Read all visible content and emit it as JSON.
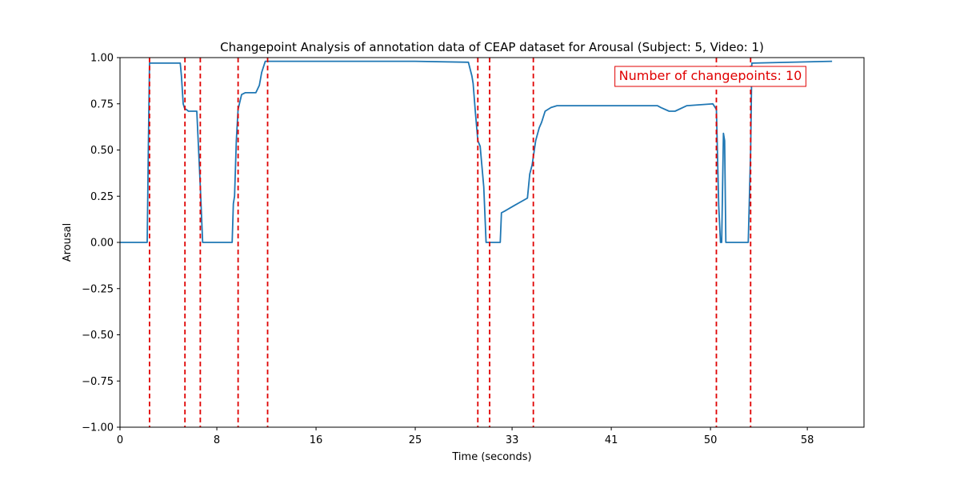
{
  "chart_data": {
    "type": "line",
    "title": "Changepoint Analysis of annotation data of CEAP dataset for Arousal (Subject: 5, Video: 1)",
    "xlabel": "Time (seconds)",
    "ylabel": "Arousal",
    "xlim": [
      0,
      63
    ],
    "ylim": [
      -1.0,
      1.0
    ],
    "x_ticks": [
      0,
      8.2,
      16.6,
      25,
      33.2,
      41.6,
      50,
      58.2
    ],
    "x_tick_labels": [
      "0",
      "8",
      "16",
      "25",
      "33",
      "41",
      "50",
      "58"
    ],
    "y_ticks": [
      -1.0,
      -0.75,
      -0.5,
      -0.25,
      0.0,
      0.25,
      0.5,
      0.75,
      1.0
    ],
    "y_tick_labels": [
      "−1.00",
      "−0.75",
      "−0.50",
      "−0.25",
      "0.00",
      "0.25",
      "0.50",
      "0.75",
      "1.00"
    ],
    "grid": false,
    "line_color": "#1f77b4",
    "changepoint_color": "#e00000",
    "series": [
      {
        "name": "",
        "x": [
          0,
          2.3,
          2.4,
          2.5,
          2.6,
          2.8,
          5.1,
          5.2,
          5.35,
          5.5,
          5.6,
          5.8,
          6.0,
          6.5,
          6.8,
          7.0,
          9.5,
          9.6,
          9.7,
          9.85,
          10.0,
          10.3,
          10.6,
          11.5,
          11.8,
          12.0,
          12.3,
          13.5,
          20,
          25,
          29.5,
          29.8,
          29.9,
          30.1,
          30.3,
          30.5,
          30.8,
          31.0,
          31.3,
          32.2,
          32.3,
          32.6,
          33.4,
          34.5,
          34.7,
          34.9,
          35.2,
          35.5,
          35.7,
          36.0,
          36.5,
          37.0,
          42.5,
          45.5,
          45.8,
          46.5,
          47.0,
          48.0,
          50.2,
          50.5,
          50.7,
          50.85,
          50.95,
          51.1,
          51.2,
          51.3,
          51.4,
          51.5,
          53.2,
          53.4,
          53.5,
          53.6,
          60.3
        ],
        "values": [
          0.0,
          0.0,
          0.5,
          0.97,
          0.97,
          0.97,
          0.97,
          0.9,
          0.75,
          0.72,
          0.72,
          0.71,
          0.71,
          0.71,
          0.3,
          0.0,
          0.0,
          0.21,
          0.25,
          0.55,
          0.72,
          0.8,
          0.81,
          0.81,
          0.85,
          0.92,
          0.98,
          0.98,
          0.98,
          0.98,
          0.975,
          0.9,
          0.86,
          0.7,
          0.55,
          0.52,
          0.3,
          0.0,
          0.0,
          0.0,
          0.16,
          0.17,
          0.2,
          0.24,
          0.37,
          0.42,
          0.55,
          0.62,
          0.65,
          0.71,
          0.73,
          0.74,
          0.74,
          0.74,
          0.73,
          0.71,
          0.71,
          0.74,
          0.75,
          0.72,
          0.2,
          0.0,
          0.0,
          0.59,
          0.55,
          0.0,
          0.0,
          0.0,
          0.0,
          0.5,
          0.97,
          0.97,
          0.98
        ]
      }
    ],
    "changepoints": [
      2.5,
      5.5,
      6.8,
      10.0,
      12.5,
      30.3,
      31.3,
      35.0,
      50.5,
      53.4
    ],
    "annotation": {
      "text": "Number of changepoints: 10",
      "placement": "top-right",
      "color": "#e00000"
    }
  }
}
